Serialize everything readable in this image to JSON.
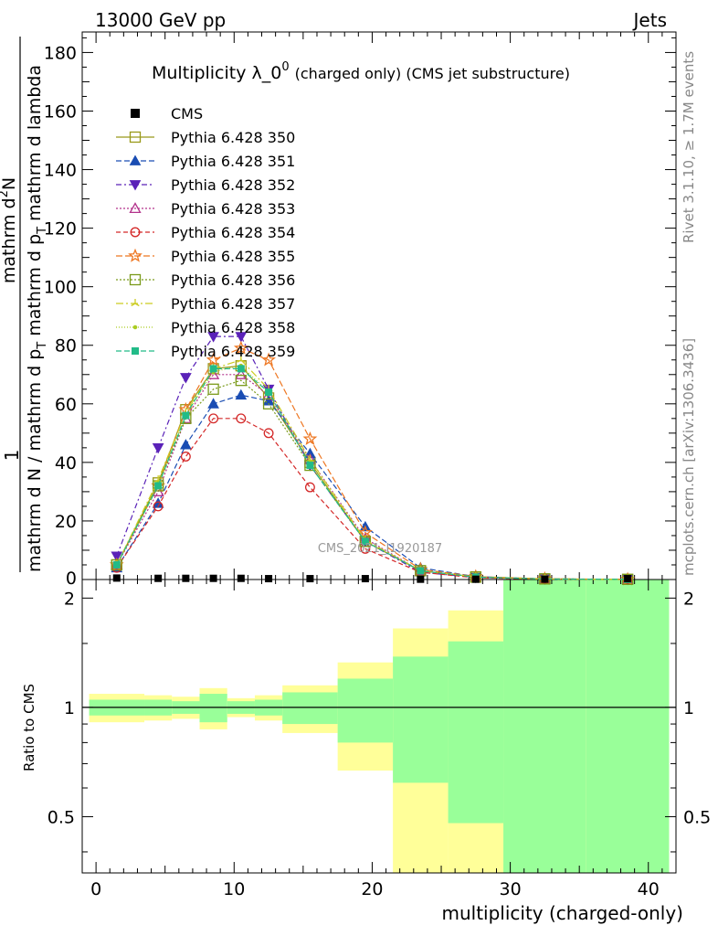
{
  "header": {
    "left": "13000 GeV pp",
    "right": "Jets"
  },
  "side": {
    "rivet": "Rivet 3.1.10, ≥ 1.7M events",
    "mcplots": "mcplots.cern.ch [arXiv:1306.3436]"
  },
  "watermark": "CMS_2021_I1920187",
  "chart_data": {
    "type": "line",
    "title_main": "Multiplicity λ_0",
    "title_sup": "0",
    "title_sub": "(charged only) (CMS jet substructure)",
    "ylabel_top": {
      "prefix": "1",
      "den_part1": "mathrm d N / mathrm d p",
      "den_sub1": "T",
      "den_part2": "mathrm d p",
      "den_sub2": "T",
      "den_part3": "mathrm d lambda",
      "num": "mathrm d",
      "num_sup": "2",
      "num_tail": "N"
    },
    "ylabel_ratio": "Ratio to CMS",
    "xlabel": "multiplicity (charged-only)",
    "xlim": [
      -1,
      42
    ],
    "ylim": [
      0,
      187
    ],
    "ratio_ylim": [
      0.35,
      2.25
    ],
    "x_ticks": [
      0,
      10,
      20,
      30,
      40
    ],
    "y_ticks": [
      20,
      40,
      60,
      80,
      100,
      120,
      140,
      160,
      180
    ],
    "ratio_ticks": [
      0.5,
      1,
      2
    ],
    "x": [
      1.5,
      4.5,
      6.5,
      8.5,
      10.5,
      12.5,
      15.5,
      19.5,
      23.5,
      27.5,
      32.5,
      38.5
    ],
    "bin_edges": [
      -0.5,
      3.5,
      5.5,
      7.5,
      9.5,
      11.5,
      13.5,
      17.5,
      21.5,
      25.5,
      29.5,
      35.5,
      41.5
    ],
    "cms": [
      0.5,
      0.4,
      0.4,
      0.4,
      0.4,
      0.3,
      0.3,
      0.3,
      0.1,
      0.1,
      0.1,
      0.3
    ],
    "bands": {
      "inner_half": [
        0.05,
        0.05,
        0.04,
        0.09,
        0.04,
        0.05,
        0.1,
        0.2,
        0.38,
        0.52,
        1.3,
        1.3
      ],
      "outer_half": [
        0.09,
        0.08,
        0.07,
        0.13,
        0.06,
        0.08,
        0.15,
        0.33,
        0.65,
        0.85,
        1.3,
        1.3
      ]
    },
    "legend": {
      "position": "top-left",
      "cms_label": "CMS"
    },
    "series": [
      {
        "name": "Pythia 6.428 350",
        "color": "#99991a",
        "marker": "square-open",
        "dash": "solid",
        "values": [
          5,
          33,
          58,
          72,
          73,
          62,
          40,
          13,
          3,
          0.9,
          0.2,
          0.05
        ]
      },
      {
        "name": "Pythia 6.428 351",
        "color": "#1a4db3",
        "marker": "triangle-up",
        "dash": "6,3",
        "values": [
          4,
          26,
          46,
          60,
          63,
          61,
          43,
          18,
          4,
          1.0,
          0.2,
          0.05
        ]
      },
      {
        "name": "Pythia 6.428 352",
        "color": "#5a22b8",
        "marker": "triangle-down",
        "dash": "6,3,2,3",
        "values": [
          8,
          45,
          69,
          83,
          83,
          65,
          39,
          13,
          2.5,
          0.7,
          0.15,
          0.04
        ]
      },
      {
        "name": "Pythia 6.428 353",
        "color": "#b3338c",
        "marker": "triangle-open",
        "dash": "2,2",
        "values": [
          5,
          30,
          55,
          70,
          70,
          63,
          41,
          14,
          3,
          0.9,
          0.2,
          0.05
        ]
      },
      {
        "name": "Pythia 6.428 354",
        "color": "#d42828",
        "marker": "circle-open",
        "dash": "5,3",
        "values": [
          4,
          25,
          42,
          55,
          55,
          50,
          31.5,
          10.5,
          2.5,
          0.6,
          0.15,
          0.04
        ]
      },
      {
        "name": "Pythia 6.428 355",
        "color": "#ee7722",
        "marker": "star-open",
        "dash": "7,3",
        "values": [
          5,
          32,
          58,
          75,
          79,
          75,
          48,
          16,
          3.5,
          1.0,
          0.25,
          0.06
        ]
      },
      {
        "name": "Pythia 6.428 356",
        "color": "#7a9a1a",
        "marker": "square-open",
        "dash": "2,2",
        "values": [
          5,
          32,
          55,
          65,
          68,
          60,
          39,
          13,
          3,
          0.8,
          0.2,
          0.05
        ]
      },
      {
        "name": "Pythia 6.428 357",
        "color": "#cccc22",
        "marker": "tristar",
        "dash": "8,3,2,3",
        "values": [
          5,
          34,
          57,
          72,
          75,
          65,
          41,
          13.5,
          3,
          0.9,
          0.2,
          0.05
        ]
      },
      {
        "name": "Pythia 6.428 358",
        "color": "#aacc22",
        "marker": "dot",
        "dash": "1,2",
        "values": [
          5,
          33,
          56,
          71,
          73,
          64,
          40,
          13,
          3,
          0.85,
          0.2,
          0.05
        ]
      },
      {
        "name": "Pythia 6.428 359",
        "color": "#22bb88",
        "marker": "square-filled",
        "dash": "6,3",
        "values": [
          5,
          32,
          56,
          72,
          72,
          64,
          39,
          13,
          3,
          0.85,
          0.2,
          0.05
        ]
      }
    ]
  },
  "colors": {
    "band_inner": "#99ff99",
    "band_outer": "#ffff99"
  }
}
